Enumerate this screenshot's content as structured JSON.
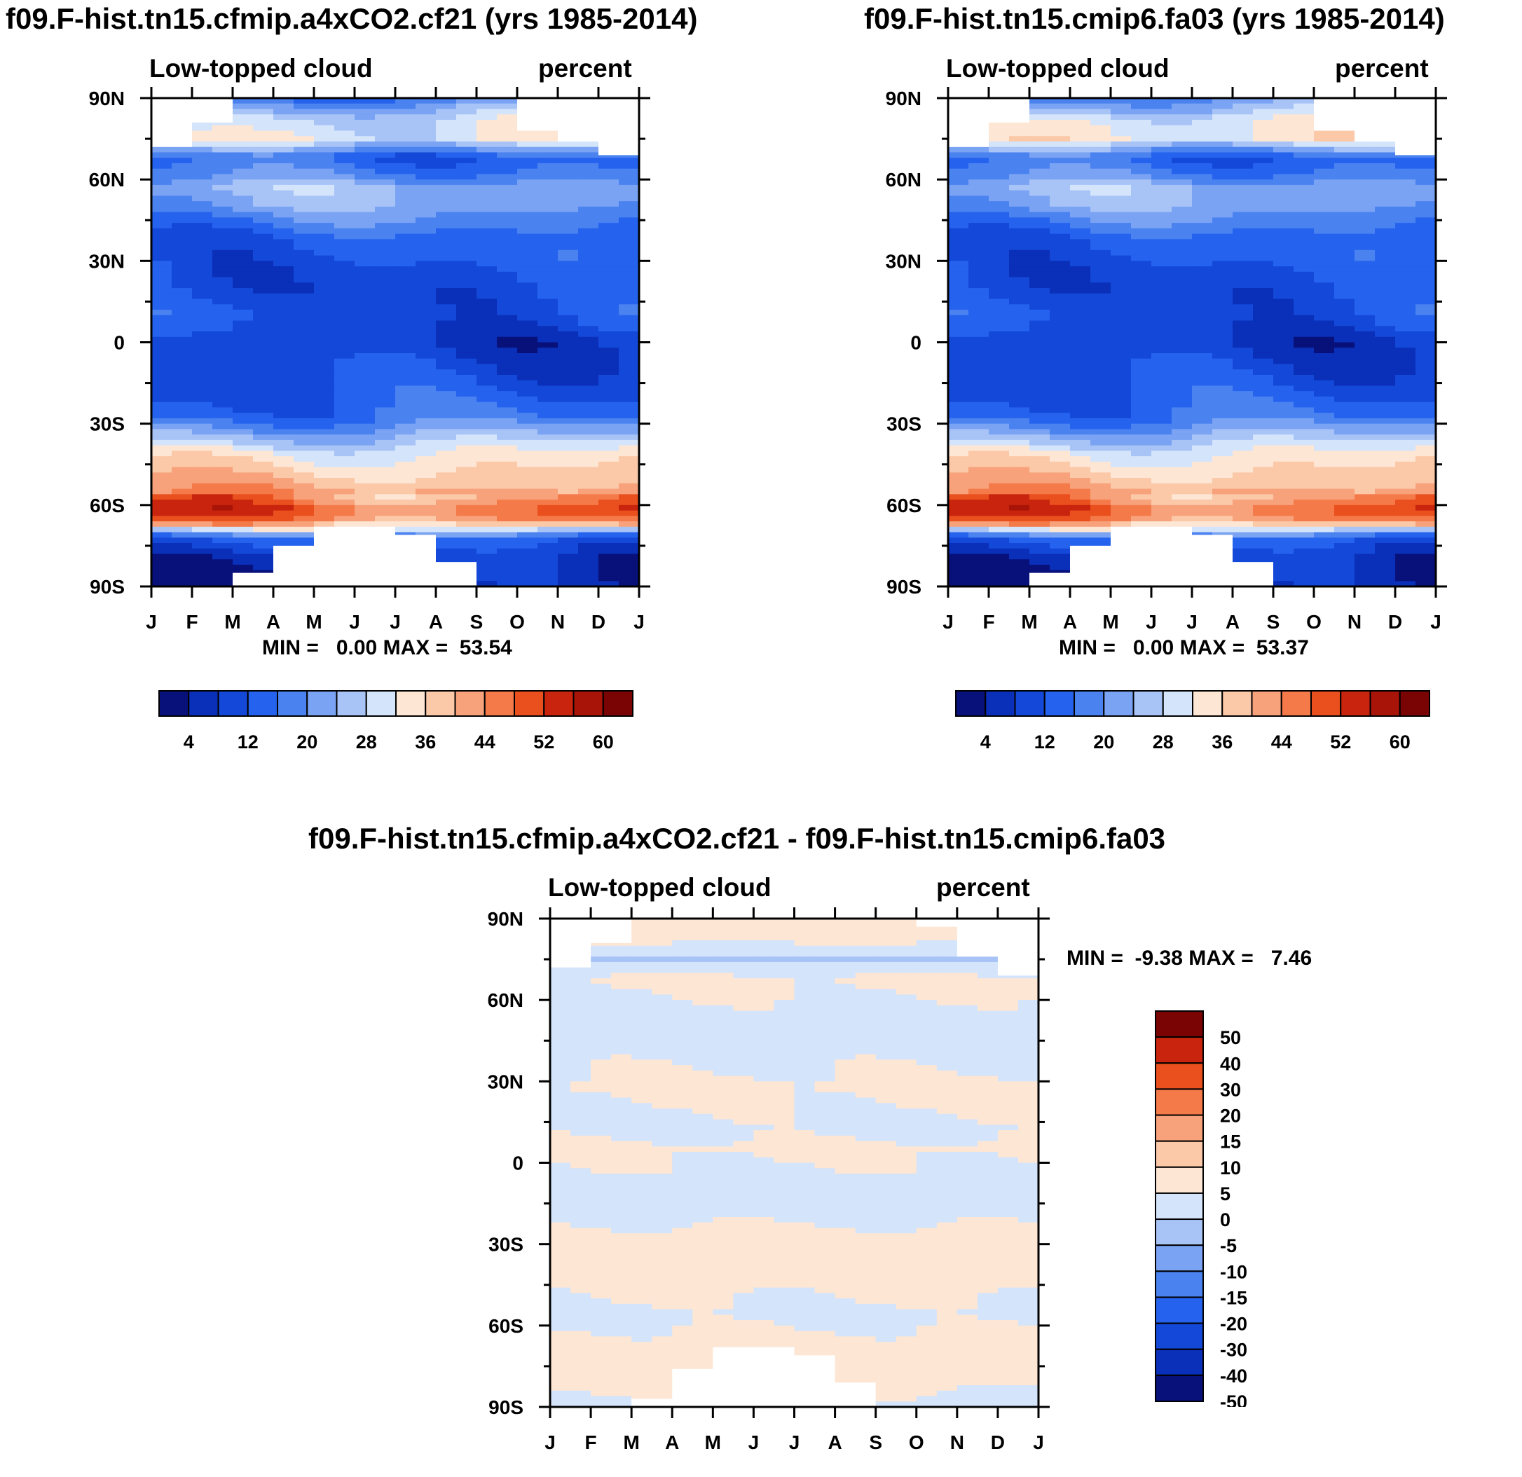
{
  "panel_a": {
    "title": "f09.F-hist.tn15.cfmip.a4xCO2.cf21 (yrs 1985-2014)",
    "left_label": "Low-topped cloud",
    "right_label": "percent",
    "stats": "MIN =   0.00 MAX =  53.54"
  },
  "panel_b": {
    "title": "f09.F-hist.tn15.cmip6.fa03 (yrs 1985-2014)",
    "left_label": "Low-topped cloud",
    "right_label": "percent",
    "stats": "MIN =   0.00 MAX =  53.37"
  },
  "panel_c": {
    "title": "f09.F-hist.tn15.cfmip.a4xCO2.cf21 - f09.F-hist.tn15.cmip6.fa03",
    "left_label": "Low-topped cloud",
    "right_label": "percent",
    "stats": "MIN =  -9.38 MAX =   7.46"
  },
  "colors": {
    "abs_palette": [
      "#08107a",
      "#0a2fb8",
      "#1448d8",
      "#2563ee",
      "#4a82f0",
      "#7aa3f3",
      "#a8c4f7",
      "#d4e4fb",
      "#fde6d4",
      "#fbc8a8",
      "#f7a27b",
      "#f57a4a",
      "#ea4f1e",
      "#c9240d",
      "#a81408",
      "#7a0404"
    ],
    "diff_palette": [
      "#08107a",
      "#0a2fb8",
      "#1448d8",
      "#2563ee",
      "#4a82f0",
      "#7aa3f3",
      "#a8c4f7",
      "#d4e4fb",
      "#fde6d4",
      "#fbc8a8",
      "#f7a27b",
      "#f57a4a",
      "#ea4f1e",
      "#c9240d",
      "#7a0404"
    ]
  },
  "chart_data": [
    {
      "type": "heatmap",
      "title": "f09.F-hist.tn15.cfmip.a4xCO2.cf21 (yrs 1985-2014)",
      "variable": "Low-topped cloud",
      "units": "percent",
      "x_ticks": [
        "J",
        "F",
        "M",
        "A",
        "M",
        "J",
        "J",
        "A",
        "S",
        "O",
        "N",
        "D",
        "J"
      ],
      "y_ticks": [
        "90N",
        "60N",
        "30N",
        "0",
        "30S",
        "60S",
        "90S"
      ],
      "ylim": [
        -90,
        90
      ],
      "min": 0.0,
      "max": 53.54,
      "colorbar_levels": [
        4,
        12,
        20,
        28,
        36,
        44,
        52,
        60
      ],
      "latitude_profile": [
        [
          -88,
          4
        ],
        [
          -80,
          6
        ],
        [
          -72,
          14
        ],
        [
          -66,
          44
        ],
        [
          -62,
          50
        ],
        [
          -57,
          44
        ],
        [
          -50,
          38
        ],
        [
          -42,
          34
        ],
        [
          -34,
          24
        ],
        [
          -28,
          16
        ],
        [
          -20,
          12
        ],
        [
          -10,
          10
        ],
        [
          0,
          8
        ],
        [
          10,
          12
        ],
        [
          20,
          10
        ],
        [
          30,
          12
        ],
        [
          40,
          14
        ],
        [
          50,
          22
        ],
        [
          57,
          24
        ],
        [
          62,
          18
        ],
        [
          68,
          14
        ],
        [
          75,
          32
        ],
        [
          82,
          30
        ],
        [
          89,
          18
        ]
      ]
    },
    {
      "type": "heatmap",
      "title": "f09.F-hist.tn15.cmip6.fa03 (yrs 1985-2014)",
      "variable": "Low-topped cloud",
      "units": "percent",
      "x_ticks": [
        "J",
        "F",
        "M",
        "A",
        "M",
        "J",
        "J",
        "A",
        "S",
        "O",
        "N",
        "D",
        "J"
      ],
      "y_ticks": [
        "90N",
        "60N",
        "30N",
        "0",
        "30S",
        "60S",
        "90S"
      ],
      "ylim": [
        -90,
        90
      ],
      "min": 0.0,
      "max": 53.37,
      "colorbar_levels": [
        4,
        12,
        20,
        28,
        36,
        44,
        52,
        60
      ],
      "latitude_profile": [
        [
          -88,
          4
        ],
        [
          -80,
          6
        ],
        [
          -72,
          14
        ],
        [
          -66,
          44
        ],
        [
          -62,
          50
        ],
        [
          -57,
          44
        ],
        [
          -50,
          38
        ],
        [
          -42,
          34
        ],
        [
          -34,
          24
        ],
        [
          -28,
          16
        ],
        [
          -20,
          12
        ],
        [
          -10,
          10
        ],
        [
          0,
          8
        ],
        [
          10,
          12
        ],
        [
          20,
          10
        ],
        [
          30,
          12
        ],
        [
          40,
          14
        ],
        [
          50,
          22
        ],
        [
          57,
          24
        ],
        [
          62,
          18
        ],
        [
          68,
          14
        ],
        [
          75,
          34
        ],
        [
          82,
          32
        ],
        [
          89,
          20
        ]
      ]
    },
    {
      "type": "heatmap",
      "title": "f09.F-hist.tn15.cfmip.a4xCO2.cf21 - f09.F-hist.tn15.cmip6.fa03",
      "variable": "Low-topped cloud",
      "units": "percent",
      "x_ticks": [
        "J",
        "F",
        "M",
        "A",
        "M",
        "J",
        "J",
        "A",
        "S",
        "O",
        "N",
        "D",
        "J"
      ],
      "y_ticks": [
        "90N",
        "60N",
        "30N",
        "0",
        "30S",
        "60S",
        "90S"
      ],
      "ylim": [
        -90,
        90
      ],
      "min": -9.38,
      "max": 7.46,
      "colorbar_levels": [
        50,
        40,
        30,
        20,
        15,
        10,
        5,
        0,
        -5,
        -10,
        -15,
        -20,
        -30,
        -40,
        -50
      ],
      "latitude_profile": [
        [
          -88,
          -1
        ],
        [
          -78,
          2
        ],
        [
          -66,
          1
        ],
        [
          -56,
          -1
        ],
        [
          -45,
          1
        ],
        [
          -30,
          2
        ],
        [
          -20,
          -1
        ],
        [
          -5,
          -1
        ],
        [
          5,
          1
        ],
        [
          12,
          -1
        ],
        [
          28,
          1
        ],
        [
          40,
          -1
        ],
        [
          55,
          -1
        ],
        [
          68,
          1
        ],
        [
          75,
          -6
        ],
        [
          82,
          1
        ]
      ]
    }
  ]
}
